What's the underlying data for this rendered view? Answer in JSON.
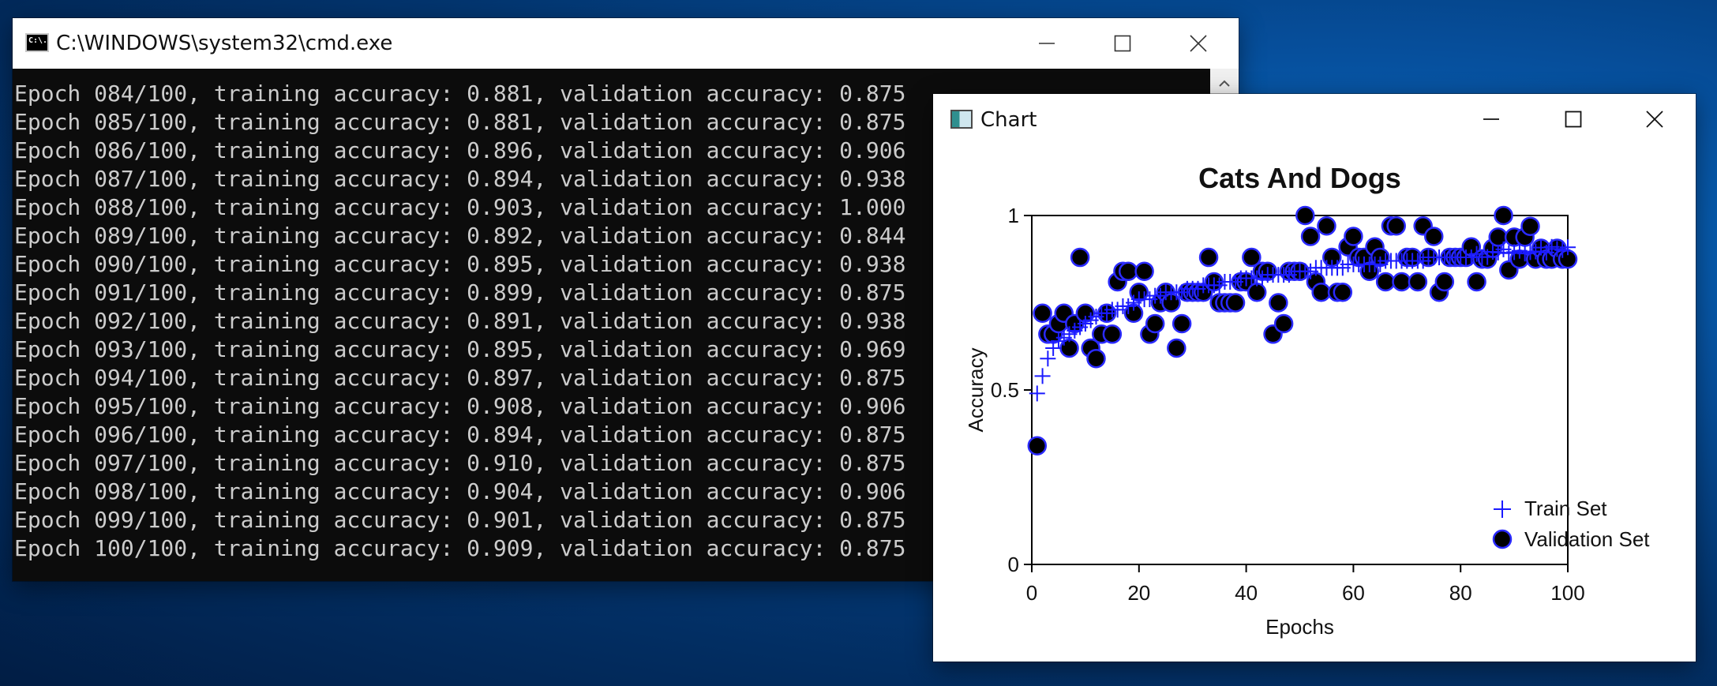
{
  "cmd": {
    "title": "C:\\WINDOWS\\system32\\cmd.exe",
    "icon": "cmd-icon",
    "icon_text": "C:\\.",
    "lines": [
      "Epoch 084/100, training accuracy: 0.881, validation accuracy: 0.875",
      "Epoch 085/100, training accuracy: 0.881, validation accuracy: 0.875",
      "Epoch 086/100, training accuracy: 0.896, validation accuracy: 0.906",
      "Epoch 087/100, training accuracy: 0.894, validation accuracy: 0.938",
      "Epoch 088/100, training accuracy: 0.903, validation accuracy: 1.000",
      "Epoch 089/100, training accuracy: 0.892, validation accuracy: 0.844",
      "Epoch 090/100, training accuracy: 0.895, validation accuracy: 0.938",
      "Epoch 091/100, training accuracy: 0.899, validation accuracy: 0.875",
      "Epoch 092/100, training accuracy: 0.891, validation accuracy: 0.938",
      "Epoch 093/100, training accuracy: 0.895, validation accuracy: 0.969",
      "Epoch 094/100, training accuracy: 0.897, validation accuracy: 0.875",
      "Epoch 095/100, training accuracy: 0.908, validation accuracy: 0.906",
      "Epoch 096/100, training accuracy: 0.894, validation accuracy: 0.875",
      "Epoch 097/100, training accuracy: 0.910, validation accuracy: 0.875",
      "Epoch 098/100, training accuracy: 0.904, validation accuracy: 0.906",
      "Epoch 099/100, training accuracy: 0.901, validation accuracy: 0.875",
      "Epoch 100/100, training accuracy: 0.909, validation accuracy: 0.875"
    ]
  },
  "chart_window": {
    "title": "Chart",
    "icon": "chart-icon"
  },
  "colors": {
    "train": "#1a1aff",
    "validation_fill": "#000000",
    "validation_edge": "#2a2aff"
  },
  "chart_data": {
    "type": "scatter",
    "title": "Cats And Dogs",
    "xlabel": "Epochs",
    "ylabel": "Accuracy",
    "xlim": [
      0,
      100
    ],
    "ylim": [
      0,
      1
    ],
    "xticks": [
      0,
      20,
      40,
      60,
      80,
      100
    ],
    "yticks": [
      0,
      0.5,
      1
    ],
    "legend_position": "bottom-right",
    "series": [
      {
        "name": "Train Set",
        "marker": "plus",
        "x": [
          1,
          2,
          3,
          4,
          5,
          6,
          7,
          8,
          9,
          10,
          11,
          12,
          13,
          14,
          15,
          16,
          17,
          18,
          19,
          20,
          21,
          22,
          23,
          24,
          25,
          26,
          27,
          28,
          29,
          30,
          31,
          32,
          33,
          34,
          35,
          36,
          37,
          38,
          39,
          40,
          41,
          42,
          43,
          44,
          45,
          46,
          47,
          48,
          49,
          50,
          51,
          52,
          53,
          54,
          55,
          56,
          57,
          58,
          59,
          60,
          61,
          62,
          63,
          64,
          65,
          66,
          67,
          68,
          69,
          70,
          71,
          72,
          73,
          74,
          75,
          76,
          77,
          78,
          79,
          80,
          81,
          82,
          83,
          84,
          85,
          86,
          87,
          88,
          89,
          90,
          91,
          92,
          93,
          94,
          95,
          96,
          97,
          98,
          99,
          100
        ],
        "y": [
          0.49,
          0.54,
          0.59,
          0.62,
          0.64,
          0.65,
          0.66,
          0.67,
          0.68,
          0.69,
          0.7,
          0.71,
          0.72,
          0.72,
          0.73,
          0.73,
          0.74,
          0.74,
          0.75,
          0.76,
          0.76,
          0.76,
          0.77,
          0.77,
          0.78,
          0.78,
          0.78,
          0.78,
          0.79,
          0.79,
          0.79,
          0.8,
          0.8,
          0.8,
          0.8,
          0.81,
          0.81,
          0.81,
          0.82,
          0.82,
          0.82,
          0.82,
          0.82,
          0.83,
          0.83,
          0.83,
          0.83,
          0.83,
          0.84,
          0.84,
          0.84,
          0.84,
          0.85,
          0.85,
          0.85,
          0.85,
          0.85,
          0.85,
          0.86,
          0.86,
          0.86,
          0.86,
          0.86,
          0.86,
          0.86,
          0.87,
          0.87,
          0.87,
          0.87,
          0.87,
          0.87,
          0.87,
          0.87,
          0.88,
          0.88,
          0.88,
          0.88,
          0.88,
          0.88,
          0.88,
          0.88,
          0.88,
          0.89,
          0.881,
          0.881,
          0.896,
          0.894,
          0.903,
          0.892,
          0.895,
          0.899,
          0.891,
          0.895,
          0.897,
          0.908,
          0.894,
          0.91,
          0.904,
          0.901,
          0.909
        ]
      },
      {
        "name": "Validation Set",
        "marker": "circle",
        "x": [
          1,
          2,
          3,
          4,
          5,
          6,
          7,
          8,
          9,
          10,
          11,
          12,
          13,
          14,
          15,
          16,
          17,
          18,
          19,
          20,
          21,
          22,
          23,
          24,
          25,
          26,
          27,
          28,
          29,
          30,
          31,
          32,
          33,
          34,
          35,
          36,
          37,
          38,
          39,
          40,
          41,
          42,
          43,
          44,
          45,
          46,
          47,
          48,
          49,
          50,
          51,
          52,
          53,
          54,
          55,
          56,
          57,
          58,
          59,
          60,
          61,
          62,
          63,
          64,
          65,
          66,
          67,
          68,
          69,
          70,
          71,
          72,
          73,
          74,
          75,
          76,
          77,
          78,
          79,
          80,
          81,
          82,
          83,
          84,
          85,
          86,
          87,
          88,
          89,
          90,
          91,
          92,
          93,
          94,
          95,
          96,
          97,
          98,
          99,
          100
        ],
        "y": [
          0.34,
          0.72,
          0.66,
          0.66,
          0.69,
          0.72,
          0.62,
          0.69,
          0.88,
          0.72,
          0.62,
          0.59,
          0.66,
          0.72,
          0.66,
          0.81,
          0.84,
          0.84,
          0.72,
          0.78,
          0.84,
          0.66,
          0.69,
          0.75,
          0.78,
          0.75,
          0.62,
          0.69,
          0.78,
          0.78,
          0.78,
          0.78,
          0.88,
          0.81,
          0.75,
          0.75,
          0.75,
          0.75,
          0.81,
          0.81,
          0.88,
          0.78,
          0.84,
          0.84,
          0.66,
          0.75,
          0.69,
          0.84,
          0.84,
          0.84,
          1.0,
          0.94,
          0.81,
          0.78,
          0.97,
          0.88,
          0.78,
          0.78,
          0.91,
          0.94,
          0.88,
          0.88,
          0.84,
          0.91,
          0.88,
          0.81,
          0.97,
          0.97,
          0.81,
          0.88,
          0.88,
          0.81,
          0.97,
          0.88,
          0.94,
          0.78,
          0.81,
          0.88,
          0.88,
          0.88,
          0.88,
          0.91,
          0.81,
          0.875,
          0.875,
          0.906,
          0.938,
          1.0,
          0.844,
          0.938,
          0.875,
          0.938,
          0.969,
          0.875,
          0.906,
          0.875,
          0.875,
          0.906,
          0.875,
          0.875
        ]
      }
    ]
  }
}
